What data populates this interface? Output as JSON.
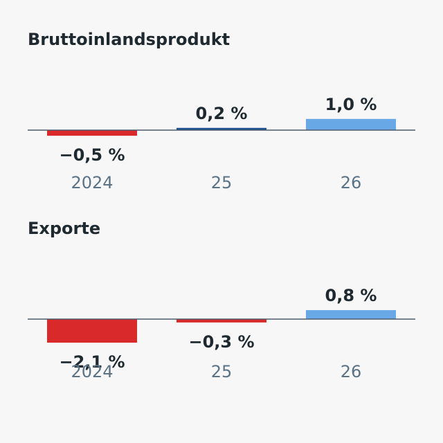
{
  "chart_data": [
    {
      "type": "bar",
      "title": "Bruttoinlandsprodukt",
      "categories": [
        "2024",
        "25",
        "26"
      ],
      "values": [
        -0.5,
        0.2,
        1.0
      ],
      "value_labels": [
        "−0,5 %",
        "0,2 %",
        "1,0 %"
      ],
      "colors": [
        "#d9292b",
        "#1d4e8f",
        "#68a8e6"
      ]
    },
    {
      "type": "bar",
      "title": "Exporte",
      "categories": [
        "2024",
        "25",
        "26"
      ],
      "values": [
        -2.1,
        -0.3,
        0.8
      ],
      "value_labels": [
        "−2,1 %",
        "−0,3 %",
        "0,8 %"
      ],
      "colors": [
        "#d9292b",
        "#d9292b",
        "#68a8e6"
      ]
    }
  ]
}
